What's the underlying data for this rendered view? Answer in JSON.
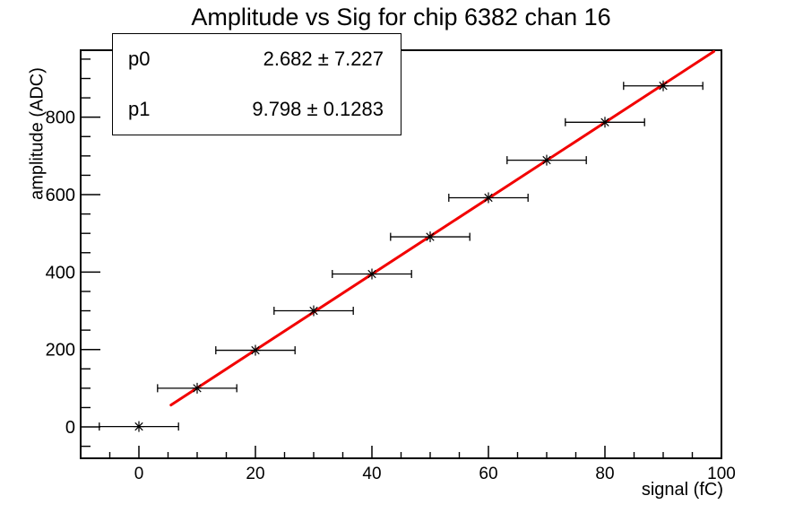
{
  "title": "Amplitude vs Sig for chip 6382 chan 16",
  "stats_box": {
    "rows": [
      {
        "label": "p0",
        "value": "2.682 ± 7.227"
      },
      {
        "label": "p1",
        "value": "9.798 ± 0.1283"
      }
    ]
  },
  "chart_data": {
    "type": "scatter",
    "title": "Amplitude vs Sig for chip 6382 chan 16",
    "xlabel": "signal (fC)",
    "ylabel": "amplitude (ADC)",
    "xlim": [
      -10,
      100
    ],
    "ylim": [
      -81,
      973
    ],
    "grid": false,
    "legend": "none",
    "x_major_ticks": [
      0,
      20,
      40,
      60,
      80,
      100
    ],
    "x_minor_step": 5,
    "y_major_ticks": [
      0,
      200,
      400,
      600,
      800
    ],
    "y_minor_step": 50,
    "marker": "asterisk-with-x-error-bars",
    "points": {
      "x": [
        0,
        10,
        20,
        30,
        40,
        50,
        60,
        70,
        80,
        90
      ],
      "y": [
        1,
        100,
        198,
        300,
        395,
        491,
        592,
        689,
        787,
        881
      ],
      "xerr": 1.7
    },
    "fit": {
      "model": "pol1: y = p0 + p1*x",
      "p0": 2.682,
      "p0_err": 7.227,
      "p1": 9.798,
      "p1_err": 0.1283,
      "x_range": [
        5.5,
        98.7
      ]
    },
    "colors": {
      "data": "#000000",
      "fit_line": "#f20000",
      "frame": "#000000",
      "background": "#ffffff"
    }
  }
}
